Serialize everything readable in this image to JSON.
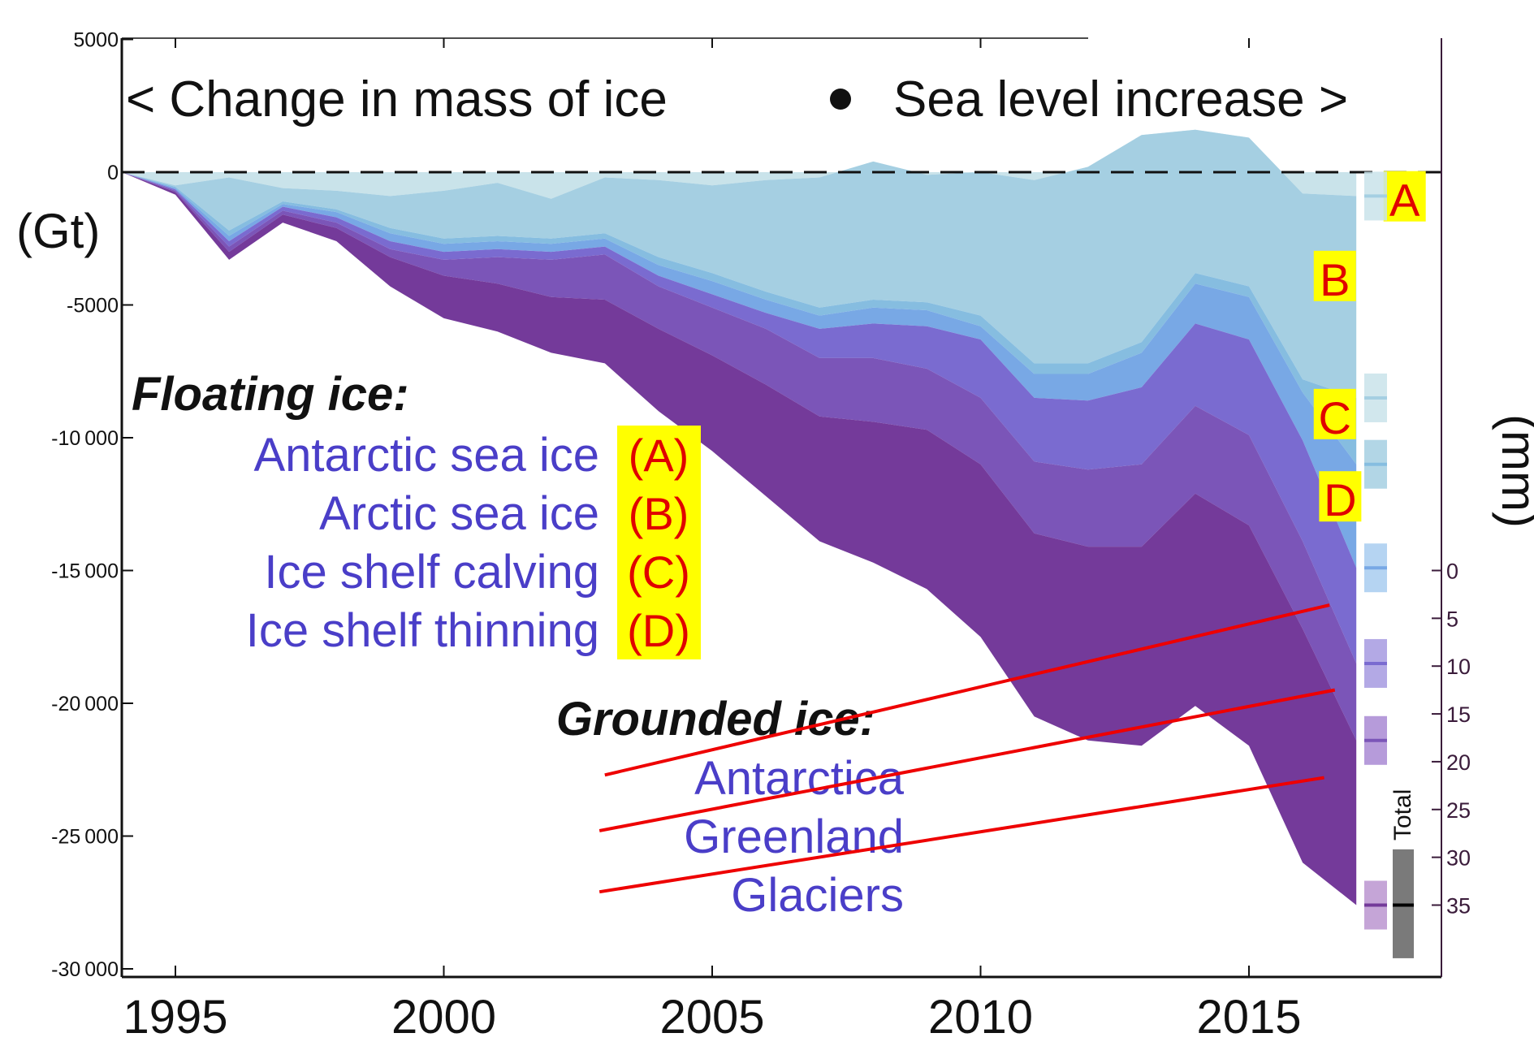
{
  "chart_data": {
    "type": "area",
    "title": "< Change in mass of ice  ●  Sea level increase >",
    "title_left": "< Change in mass of ice",
    "title_sep": "●",
    "title_right": "Sea level increase >",
    "ylabel": "(Gt)",
    "ylabel_right": "(mm)",
    "xlim": [
      1994,
      2018.5
    ],
    "ylim": [
      -30000,
      5000
    ],
    "x_ticks": [
      1995,
      2000,
      2005,
      2010,
      2015
    ],
    "y_ticks": [
      5000,
      0,
      -5000,
      -10000,
      -15000,
      -20000,
      -25000,
      -30000
    ],
    "y_tick_labels": [
      "5000",
      "0",
      "-5000",
      "-10 000",
      "-15 000",
      "-20 000",
      "-25 000",
      "-30 000"
    ],
    "mm_ticks": [
      0,
      5,
      10,
      15,
      20,
      25,
      30,
      35
    ],
    "mm_zero_gt": -15000,
    "mm_per_gt": 0.002778,
    "x": [
      1994,
      1995,
      1996,
      1997,
      1998,
      1999,
      2000,
      2001,
      2002,
      2003,
      2004,
      2005,
      2006,
      2007,
      2008,
      2009,
      2010,
      2011,
      2012,
      2013,
      2014,
      2015,
      2016,
      2017
    ],
    "series_note": "values are cumulative stack boundaries in Gt, each series drawn from the previous boundary",
    "series": [
      {
        "name": "Antarctic sea ice",
        "tag": "A",
        "color": "#c9e3ea",
        "values": [
          0,
          -500,
          -200,
          -600,
          -700,
          -900,
          -700,
          -400,
          -1000,
          -200,
          -300,
          -500,
          -300,
          -200,
          400,
          -100,
          0,
          -300,
          200,
          1400,
          1600,
          1300,
          -800,
          -900
        ]
      },
      {
        "name": "Arctic sea ice",
        "tag": "B",
        "color": "#a5cfe2",
        "values": [
          0,
          -550,
          -2200,
          -1100,
          -1400,
          -2100,
          -2500,
          -2400,
          -2500,
          -2300,
          -3200,
          -3800,
          -4500,
          -5100,
          -4800,
          -4900,
          -5400,
          -7200,
          -7200,
          -6400,
          -3800,
          -4300,
          -7800,
          -8500
        ]
      },
      {
        "name": "Ice shelf calving",
        "tag": "C",
        "color": "#86bde0",
        "values": [
          0,
          -600,
          -2400,
          -1200,
          -1500,
          -2300,
          -2700,
          -2600,
          -2700,
          -2500,
          -3500,
          -4100,
          -4800,
          -5400,
          -5100,
          -5200,
          -5800,
          -7600,
          -7600,
          -6800,
          -4200,
          -4700,
          -8300,
          -11000
        ]
      },
      {
        "name": "Ice shelf thinning",
        "tag": "D",
        "color": "#78a8e5",
        "values": [
          0,
          -650,
          -2600,
          -1300,
          -1700,
          -2600,
          -3000,
          -2900,
          -3000,
          -2800,
          -3900,
          -4600,
          -5300,
          -5900,
          -5700,
          -5800,
          -6300,
          -8500,
          -8600,
          -8100,
          -5700,
          -6300,
          -10100,
          -14900
        ]
      },
      {
        "name": "Antarctica",
        "color": "#7a6bd0",
        "values": [
          0,
          -700,
          -2800,
          -1450,
          -1900,
          -2900,
          -3300,
          -3200,
          -3300,
          -3100,
          -4300,
          -5100,
          -5900,
          -7000,
          -7000,
          -7400,
          -8500,
          -10900,
          -11200,
          -11000,
          -8800,
          -9900,
          -13900,
          -18500
        ]
      },
      {
        "name": "Greenland",
        "color": "#7b55b8",
        "values": [
          0,
          -750,
          -3000,
          -1600,
          -2100,
          -3200,
          -3900,
          -4200,
          -4700,
          -4800,
          -5900,
          -6900,
          -8000,
          -9200,
          -9400,
          -9700,
          -11000,
          -13600,
          -14100,
          -14100,
          -12100,
          -13300,
          -17200,
          -21400
        ]
      },
      {
        "name": "Glaciers",
        "color": "#743a9a",
        "values": [
          0,
          -850,
          -3300,
          -1900,
          -2600,
          -4300,
          -5500,
          -6000,
          -6800,
          -7200,
          -9000,
          -10500,
          -12200,
          -13900,
          -14700,
          -15700,
          -17500,
          -20500,
          -21400,
          -21600,
          -20100,
          -21600,
          -26000,
          -27600
        ]
      }
    ],
    "legend_floating_header": "Floating ice:",
    "legend_grounded_header": "Grounded ice:",
    "legend_floating": [
      {
        "label": "Antarctic sea ice",
        "tag": "(A)"
      },
      {
        "label": "Arctic sea ice",
        "tag": "(B)"
      },
      {
        "label": "Ice shelf calving",
        "tag": "(C)"
      },
      {
        "label": "Ice shelf thinning",
        "tag": "(D)"
      }
    ],
    "legend_grounded": [
      "Antarctica",
      "Greenland",
      "Glaciers"
    ],
    "area_tags": [
      {
        "tag": "A",
        "x": 2017.9,
        "y": -1000
      },
      {
        "tag": "B",
        "x": 2016.6,
        "y": -4000
      },
      {
        "tag": "C",
        "x": 2016.6,
        "y": -9200
      },
      {
        "tag": "D",
        "x": 2016.7,
        "y": -12300
      }
    ],
    "end_markers": [
      {
        "y": -900,
        "color": "#c9e3ea",
        "line": "#a5cfe2"
      },
      {
        "y": -8500,
        "color": "#c9e3ea",
        "line": "#a5cfe2"
      },
      {
        "y": -11000,
        "color": "#a5cfe2",
        "line": "#86bde0"
      },
      {
        "y": -14900,
        "color": "#a8cdf0",
        "line": "#78a8e5"
      },
      {
        "y": -18500,
        "color": "#a69ae0",
        "line": "#7a6bd0"
      },
      {
        "y": -21400,
        "color": "#a98ad4",
        "line": "#7b55b8"
      },
      {
        "y": -27600,
        "color": "#bb95d0",
        "line": "#743a9a"
      }
    ],
    "pointer_lines": [
      {
        "label": "Antarctica",
        "from": [
          2003.0,
          -22700
        ],
        "to": [
          2016.5,
          -16300
        ]
      },
      {
        "label": "Greenland",
        "from": [
          2002.9,
          -24800
        ],
        "to": [
          2016.6,
          -19500
        ]
      },
      {
        "label": "Glaciers",
        "from": [
          2002.9,
          -27100
        ],
        "to": [
          2016.4,
          -22800
        ]
      }
    ],
    "total_label": "Total",
    "total_value_gt": -27600
  }
}
